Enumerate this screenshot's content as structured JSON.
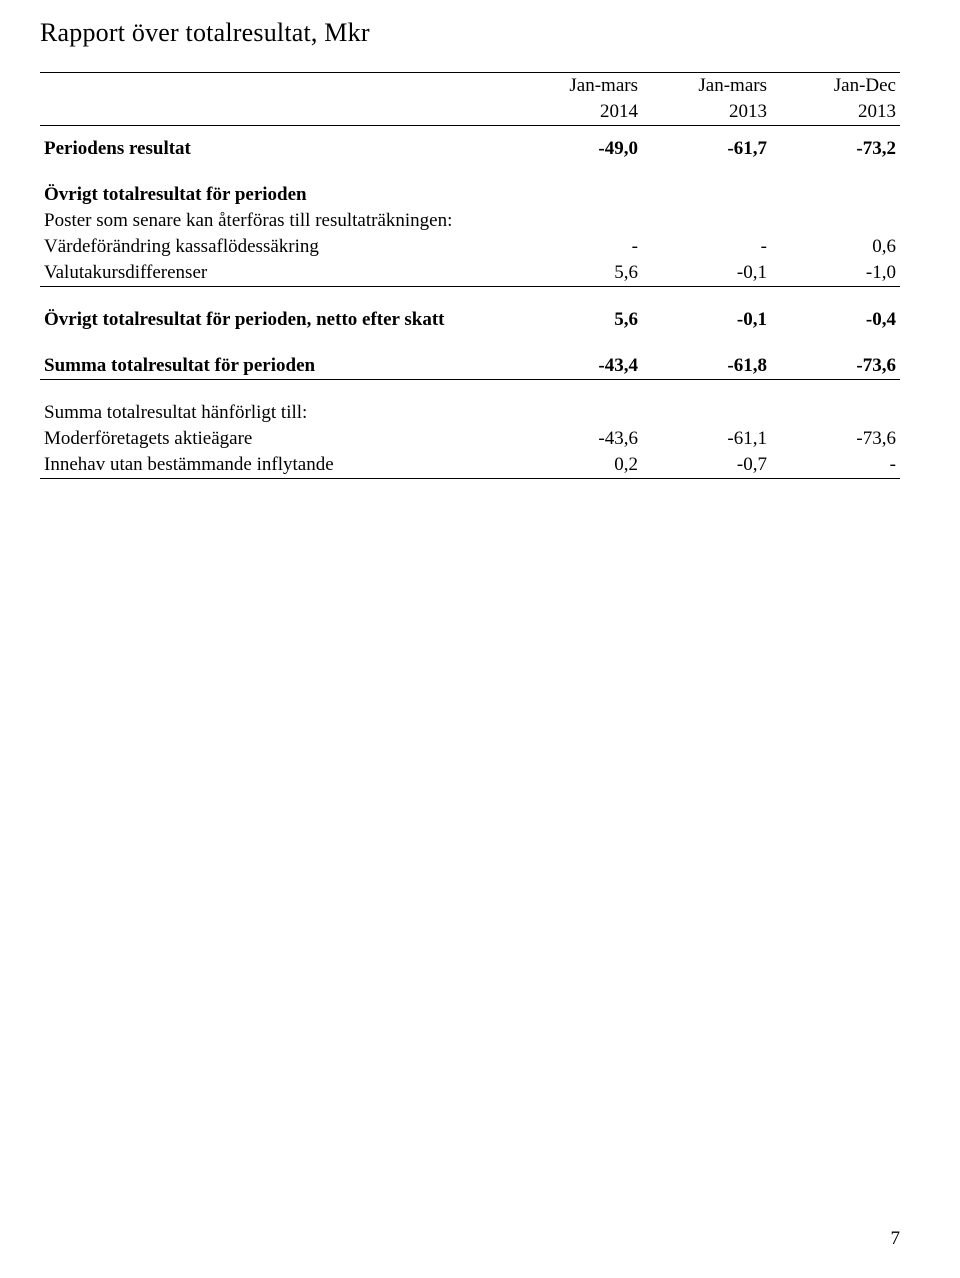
{
  "title": "Rapport över totalresultat, Mkr",
  "columns": {
    "c1_line1": "Jan-mars",
    "c1_line2": "2014",
    "c2_line1": "Jan-mars",
    "c2_line2": "2013",
    "c3_line1": "Jan-Dec",
    "c3_line2": "2013"
  },
  "rows": {
    "periodens_resultat": {
      "label": "Periodens resultat",
      "v1": "-49,0",
      "v2": "-61,7",
      "v3": "-73,2"
    },
    "ovrigt_period_header": "Övrigt totalresultat för perioden",
    "poster_senare": "Poster som senare kan återföras till resultaträkningen:",
    "vardeforandring": {
      "label": "Värdeförändring kassaflödessäkring",
      "v1": "-",
      "v2": "-",
      "v3": "0,6"
    },
    "valutakurs": {
      "label": "Valutakursdifferenser",
      "v1": "5,6",
      "v2": "-0,1",
      "v3": "-1,0"
    },
    "ovrigt_netto": {
      "label": "Övrigt totalresultat för perioden, netto efter skatt",
      "v1": "5,6",
      "v2": "-0,1",
      "v3": "-0,4"
    },
    "summa_period": {
      "label": "Summa totalresultat för perioden",
      "v1": "-43,4",
      "v2": "-61,8",
      "v3": "-73,6"
    },
    "summa_hanforligt": "Summa totalresultat hänförligt till:",
    "moder": {
      "label": "Moderföretagets aktieägare",
      "v1": "-43,6",
      "v2": "-61,1",
      "v3": "-73,6"
    },
    "innehav": {
      "label": "Innehav utan bestämmande inflytande",
      "v1": "0,2",
      "v2": "-0,7",
      "v3": "-"
    }
  },
  "page_number": "7"
}
